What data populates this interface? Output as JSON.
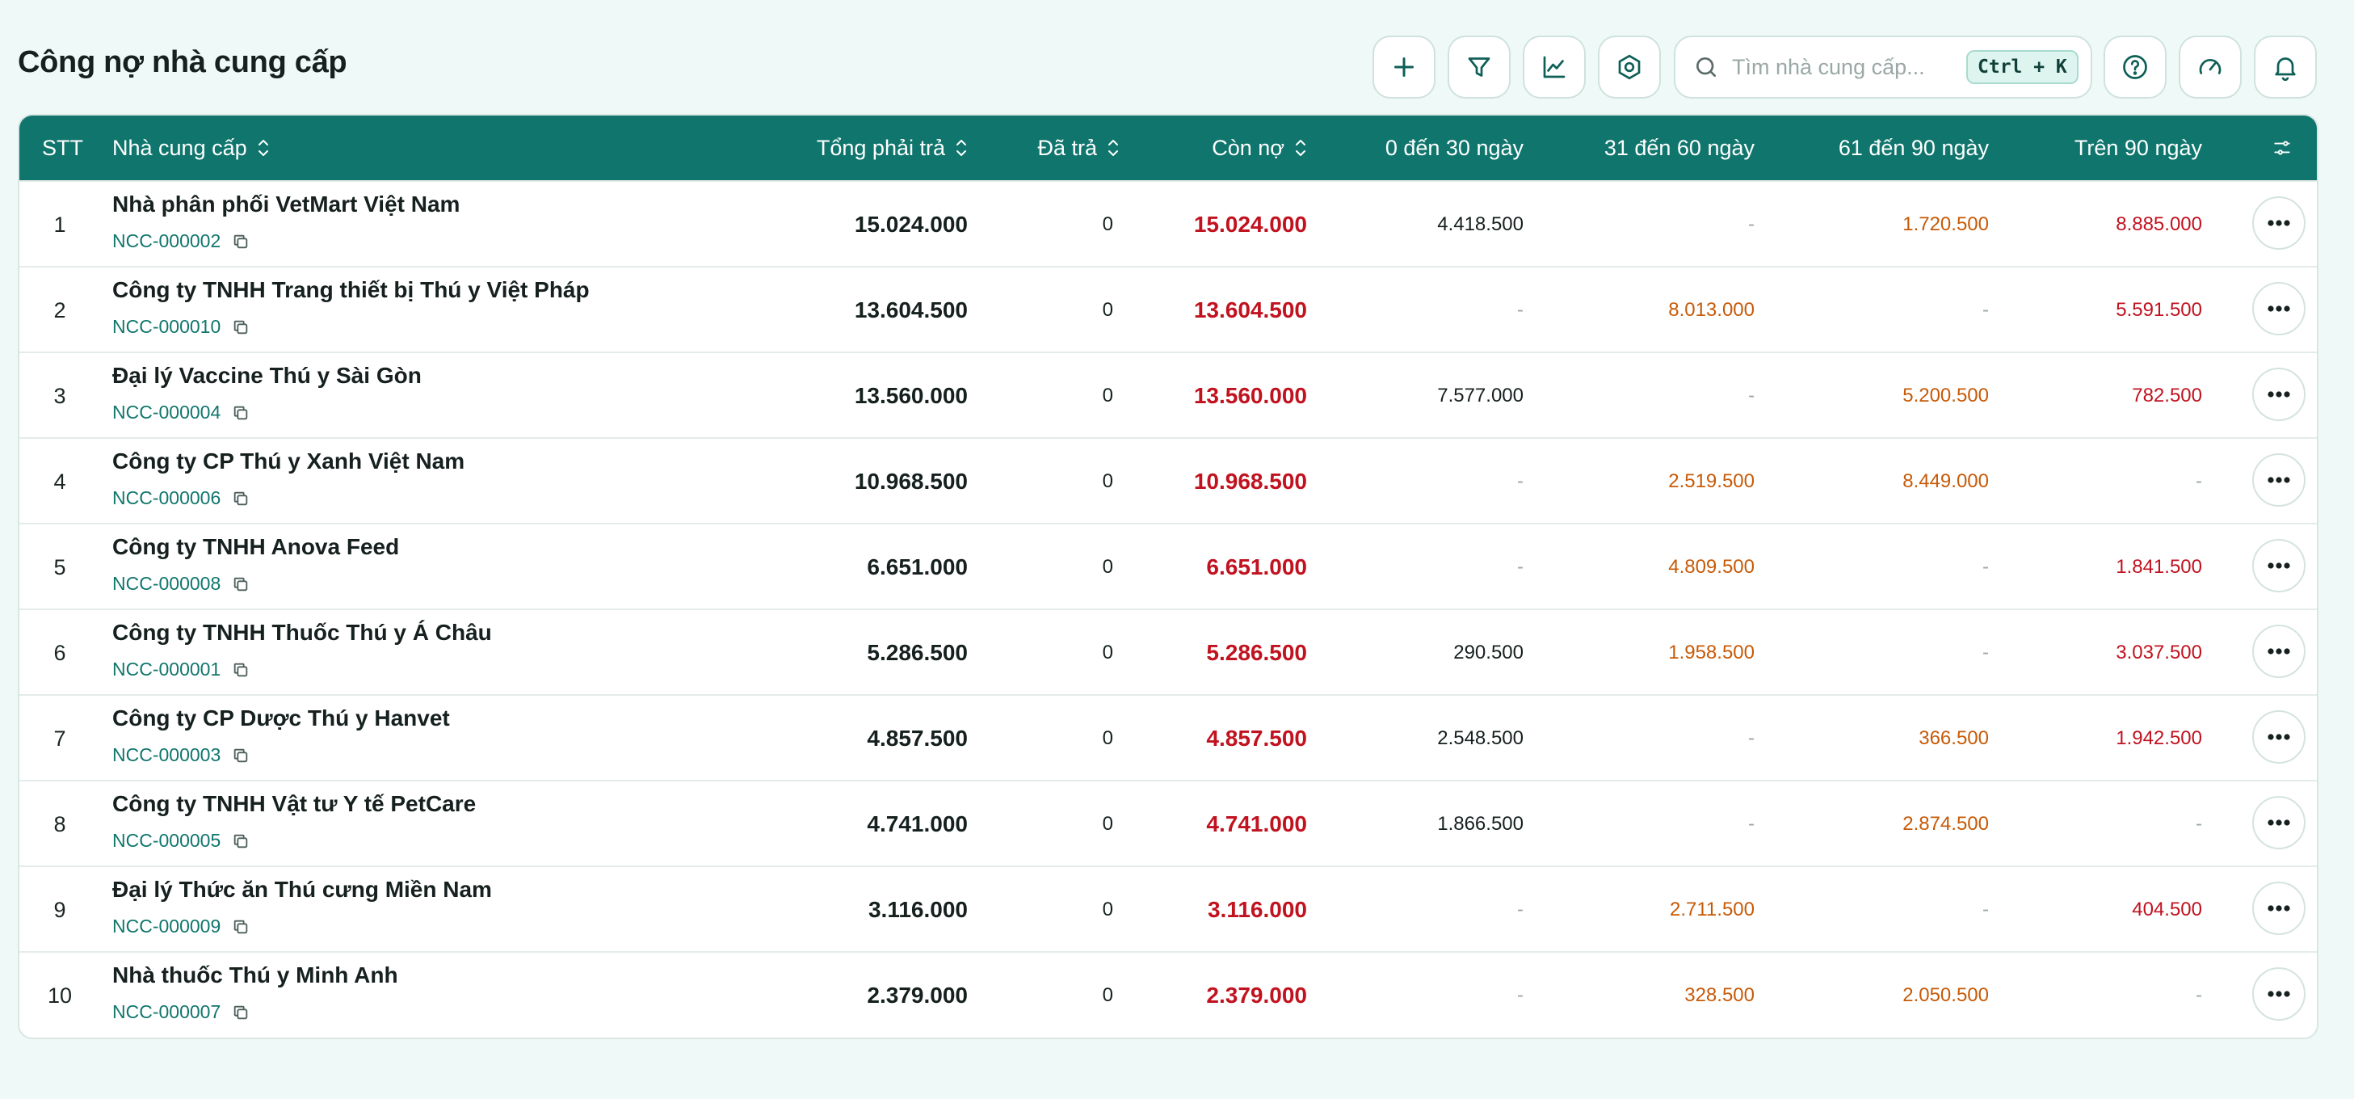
{
  "page": {
    "title": "Công nợ nhà cung cấp"
  },
  "toolbar": {
    "icons": [
      "plus-icon",
      "filter-icon",
      "chart-icon",
      "settings-icon"
    ],
    "search_placeholder": "Tìm nhà cung cấp...",
    "search_value": "",
    "search_shortcut": "Ctrl + K",
    "right_icons": [
      "help-icon",
      "speed-gauge-icon",
      "bell-icon"
    ]
  },
  "colors": {
    "accent": "#10766d",
    "debt_red": "#c1121f",
    "aging_orange": "#c75a07"
  },
  "table": {
    "headers": {
      "stt": "STT",
      "supplier": "Nhà cung cấp",
      "total": "Tổng phải trả",
      "paid": "Đã trả",
      "remaining": "Còn nợ",
      "b0_30": "0 đến 30 ngày",
      "b31_60": "31 đến 60 ngày",
      "b61_90": "61 đến 90 ngày",
      "b90": "Trên 90 ngày"
    },
    "rows": [
      {
        "stt": "1",
        "name": "Nhà phân phối VetMart Việt Nam",
        "code": "NCC-000002",
        "total": "15.024.000",
        "paid": "0",
        "remaining": "15.024.000",
        "b0_30": "4.418.500",
        "b31_60": "-",
        "b61_90": "1.720.500",
        "b90": "8.885.000"
      },
      {
        "stt": "2",
        "name": "Công ty TNHH Trang thiết bị Thú y Việt Pháp",
        "code": "NCC-000010",
        "total": "13.604.500",
        "paid": "0",
        "remaining": "13.604.500",
        "b0_30": "-",
        "b31_60": "8.013.000",
        "b61_90": "-",
        "b90": "5.591.500"
      },
      {
        "stt": "3",
        "name": "Đại lý Vaccine Thú y Sài Gòn",
        "code": "NCC-000004",
        "total": "13.560.000",
        "paid": "0",
        "remaining": "13.560.000",
        "b0_30": "7.577.000",
        "b31_60": "-",
        "b61_90": "5.200.500",
        "b90": "782.500"
      },
      {
        "stt": "4",
        "name": "Công ty CP Thú y Xanh Việt Nam",
        "code": "NCC-000006",
        "total": "10.968.500",
        "paid": "0",
        "remaining": "10.968.500",
        "b0_30": "-",
        "b31_60": "2.519.500",
        "b61_90": "8.449.000",
        "b90": "-"
      },
      {
        "stt": "5",
        "name": "Công ty TNHH Anova Feed",
        "code": "NCC-000008",
        "total": "6.651.000",
        "paid": "0",
        "remaining": "6.651.000",
        "b0_30": "-",
        "b31_60": "4.809.500",
        "b61_90": "-",
        "b90": "1.841.500"
      },
      {
        "stt": "6",
        "name": "Công ty TNHH Thuốc Thú y Á Châu",
        "code": "NCC-000001",
        "total": "5.286.500",
        "paid": "0",
        "remaining": "5.286.500",
        "b0_30": "290.500",
        "b31_60": "1.958.500",
        "b61_90": "-",
        "b90": "3.037.500"
      },
      {
        "stt": "7",
        "name": "Công ty CP Dược Thú y Hanvet",
        "code": "NCC-000003",
        "total": "4.857.500",
        "paid": "0",
        "remaining": "4.857.500",
        "b0_30": "2.548.500",
        "b31_60": "-",
        "b61_90": "366.500",
        "b90": "1.942.500"
      },
      {
        "stt": "8",
        "name": "Công ty TNHH Vật tư Y tế PetCare",
        "code": "NCC-000005",
        "total": "4.741.000",
        "paid": "0",
        "remaining": "4.741.000",
        "b0_30": "1.866.500",
        "b31_60": "-",
        "b61_90": "2.874.500",
        "b90": "-"
      },
      {
        "stt": "9",
        "name": "Đại lý Thức ăn Thú cưng Miền Nam",
        "code": "NCC-000009",
        "total": "3.116.000",
        "paid": "0",
        "remaining": "3.116.000",
        "b0_30": "-",
        "b31_60": "2.711.500",
        "b61_90": "-",
        "b90": "404.500"
      },
      {
        "stt": "10",
        "name": "Nhà thuốc Thú y Minh Anh",
        "code": "NCC-000007",
        "total": "2.379.000",
        "paid": "0",
        "remaining": "2.379.000",
        "b0_30": "-",
        "b31_60": "328.500",
        "b61_90": "2.050.500",
        "b90": "-"
      }
    ]
  }
}
